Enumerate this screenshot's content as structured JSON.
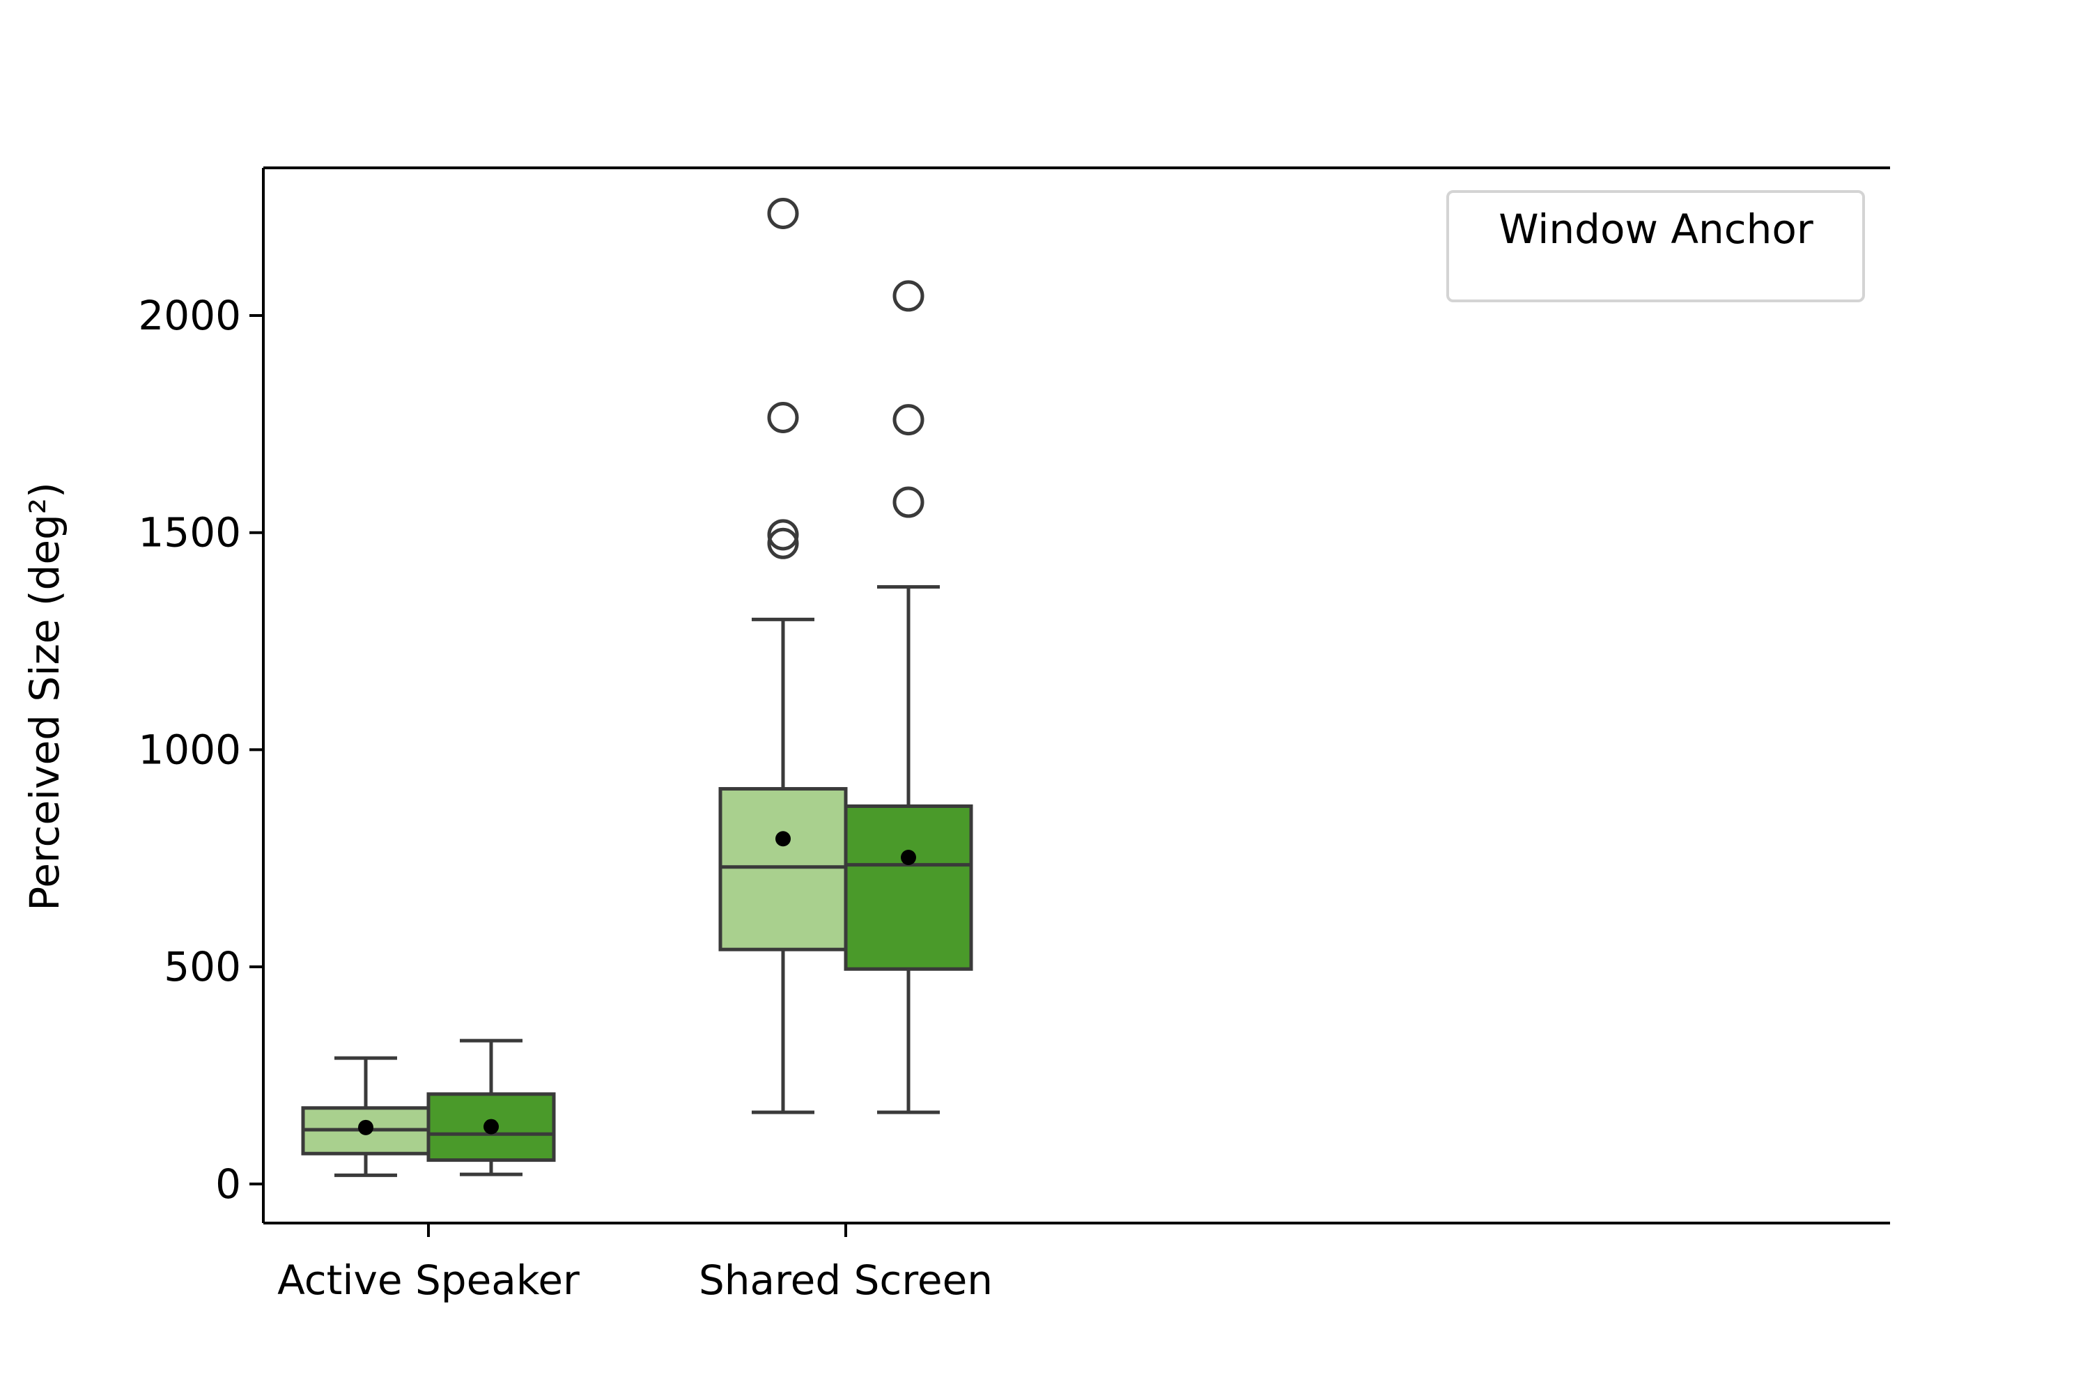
{
  "chart_data": {
    "type": "box",
    "title": "",
    "xlabel": "",
    "ylabel": "Perceived Size (deg²)",
    "ylim": [
      -90,
      2340
    ],
    "yticks": [
      0,
      500,
      1000,
      1500,
      2000
    ],
    "ytick_labels": [
      "0",
      "500",
      "1000",
      "1500",
      "2000"
    ],
    "categories": [
      "Active Speaker",
      "Shared Screen"
    ],
    "legend": {
      "title": "Window Anchor",
      "position": "top-right",
      "entries": []
    },
    "grid": false,
    "series": [
      {
        "color": "#a9d08e",
        "boxes": [
          {
            "whisker_low": 20,
            "q1": 70,
            "median": 125,
            "q3": 175,
            "whisker_high": 290,
            "mean": 130,
            "outliers": []
          },
          {
            "whisker_low": 165,
            "q1": 540,
            "median": 730,
            "q3": 910,
            "whisker_high": 1300,
            "mean": 795,
            "outliers": [
              1475,
              1495,
              1765,
              2235
            ]
          }
        ]
      },
      {
        "color": "#4a9a2a",
        "boxes": [
          {
            "whisker_low": 22,
            "q1": 55,
            "median": 115,
            "q3": 207,
            "whisker_high": 330,
            "mean": 132,
            "outliers": []
          },
          {
            "whisker_low": 165,
            "q1": 495,
            "median": 735,
            "q3": 870,
            "whisker_high": 1375,
            "mean": 752,
            "outliers": [
              1570,
              1760,
              2045
            ]
          }
        ]
      }
    ]
  }
}
